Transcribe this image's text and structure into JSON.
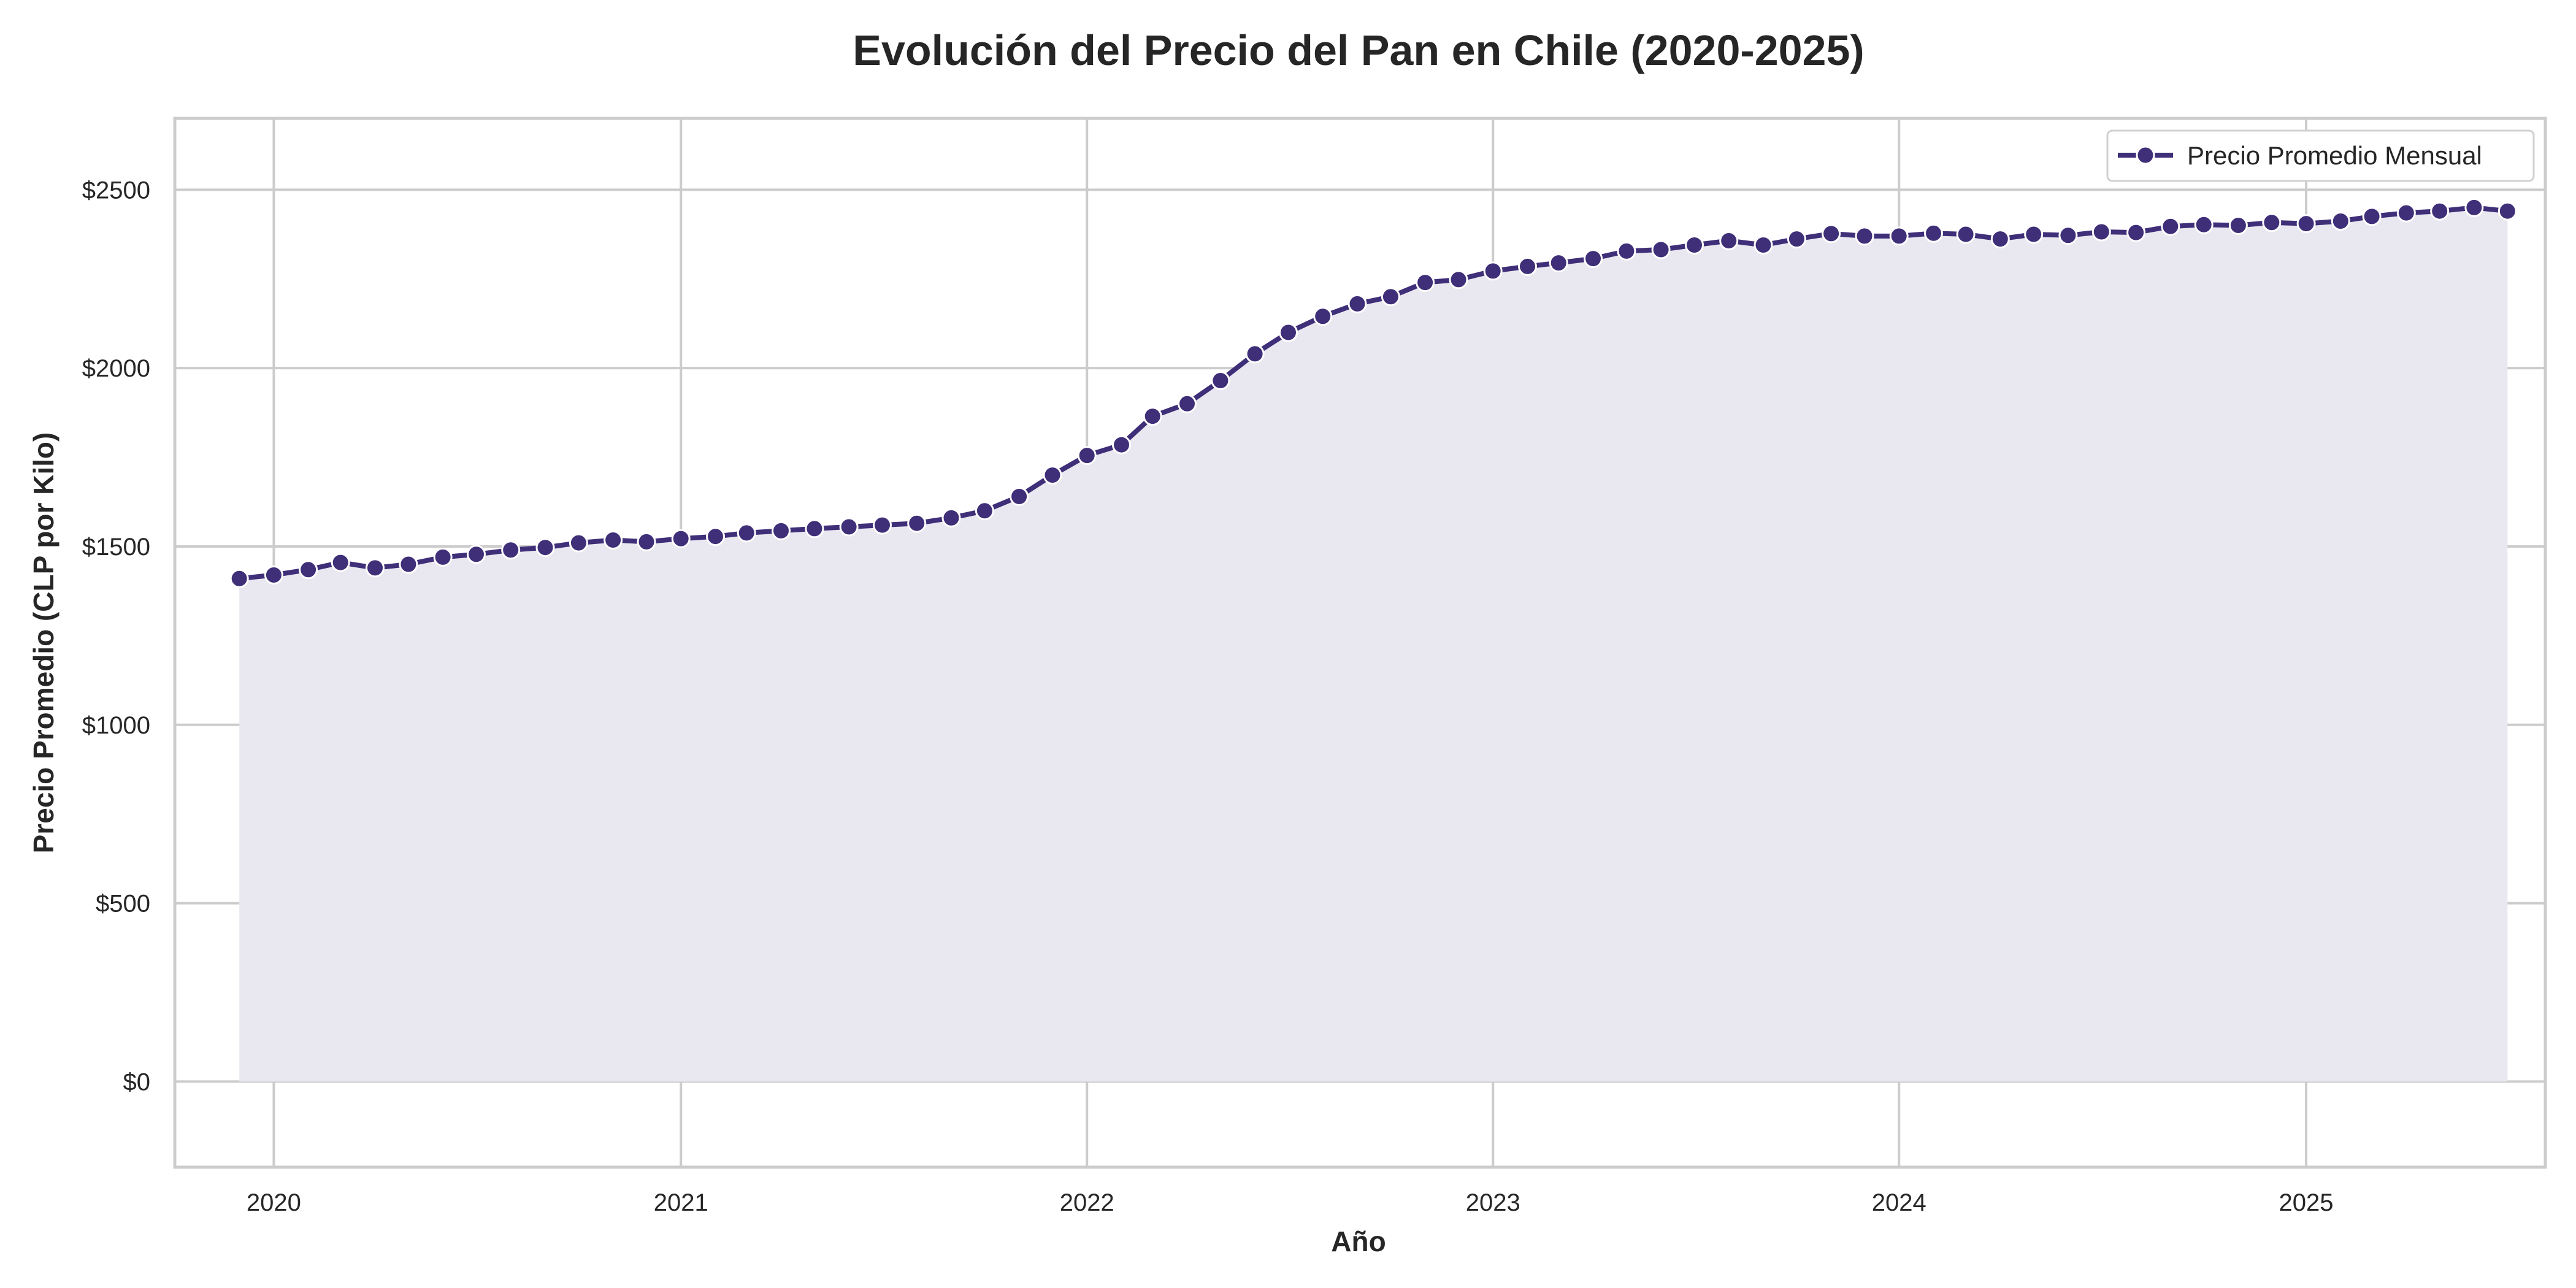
{
  "chart_data": {
    "type": "line",
    "title": "Evolución del Precio del Pan en Chile (2020-2025)",
    "xlabel": "Año",
    "ylabel": "Precio Promedio (CLP por Kilo)",
    "xlim": [
      "2019-10-04",
      "2025-08-04"
    ],
    "ylim": [
      -240,
      2700
    ],
    "x_ticks": [
      {
        "date": "2020-01-01",
        "label": "2020"
      },
      {
        "date": "2021-01-01",
        "label": "2021"
      },
      {
        "date": "2022-01-01",
        "label": "2022"
      },
      {
        "date": "2023-01-01",
        "label": "2023"
      },
      {
        "date": "2024-01-01",
        "label": "2024"
      },
      {
        "date": "2025-01-01",
        "label": "2025"
      }
    ],
    "y_ticks": [
      {
        "value": 0,
        "label": "$0"
      },
      {
        "value": 500,
        "label": "$500"
      },
      {
        "value": 1000,
        "label": "$1000"
      },
      {
        "value": 1500,
        "label": "$1500"
      },
      {
        "value": 2000,
        "label": "$2000"
      },
      {
        "value": 2500,
        "label": "$2500"
      }
    ],
    "grid": true,
    "legend": {
      "position": "top-right"
    },
    "series": [
      {
        "name": "Precio Promedio Mensual",
        "color": "#3f2e78",
        "fill_color": "#e9e8f0",
        "marker": "circle",
        "x": [
          "2019-12-01",
          "2020-01-01",
          "2020-02-01",
          "2020-03-01",
          "2020-04-01",
          "2020-05-01",
          "2020-06-01",
          "2020-07-01",
          "2020-08-01",
          "2020-09-01",
          "2020-10-01",
          "2020-11-01",
          "2020-12-01",
          "2021-01-01",
          "2021-02-01",
          "2021-03-01",
          "2021-04-01",
          "2021-05-01",
          "2021-06-01",
          "2021-07-01",
          "2021-08-01",
          "2021-09-01",
          "2021-10-01",
          "2021-11-01",
          "2021-12-01",
          "2022-01-01",
          "2022-02-01",
          "2022-03-01",
          "2022-04-01",
          "2022-05-01",
          "2022-06-01",
          "2022-07-01",
          "2022-08-01",
          "2022-09-01",
          "2022-10-01",
          "2022-11-01",
          "2022-12-01",
          "2023-01-01",
          "2023-02-01",
          "2023-03-01",
          "2023-04-01",
          "2023-05-01",
          "2023-06-01",
          "2023-07-01",
          "2023-08-01",
          "2023-09-01",
          "2023-10-01",
          "2023-11-01",
          "2023-12-01",
          "2024-01-01",
          "2024-02-01",
          "2024-03-01",
          "2024-04-01",
          "2024-05-01",
          "2024-06-01",
          "2024-07-01",
          "2024-08-01",
          "2024-09-01",
          "2024-10-01",
          "2024-11-01",
          "2024-12-01",
          "2025-01-01",
          "2025-02-01",
          "2025-03-01",
          "2025-04-01",
          "2025-05-01",
          "2025-06-01",
          "2025-07-01"
        ],
        "values": [
          1410,
          1420,
          1435,
          1455,
          1440,
          1450,
          1470,
          1478,
          1490,
          1497,
          1510,
          1518,
          1513,
          1522,
          1528,
          1538,
          1544,
          1550,
          1555,
          1560,
          1565,
          1580,
          1600,
          1640,
          1700,
          1755,
          1785,
          1865,
          1900,
          1965,
          2040,
          2100,
          2145,
          2180,
          2200,
          2240,
          2248,
          2272,
          2285,
          2295,
          2307,
          2328,
          2332,
          2345,
          2357,
          2345,
          2362,
          2377,
          2370,
          2370,
          2378,
          2375,
          2362,
          2375,
          2372,
          2382,
          2380,
          2397,
          2402,
          2400,
          2408,
          2405,
          2412,
          2425,
          2435,
          2440,
          2450,
          2440
        ]
      }
    ]
  }
}
